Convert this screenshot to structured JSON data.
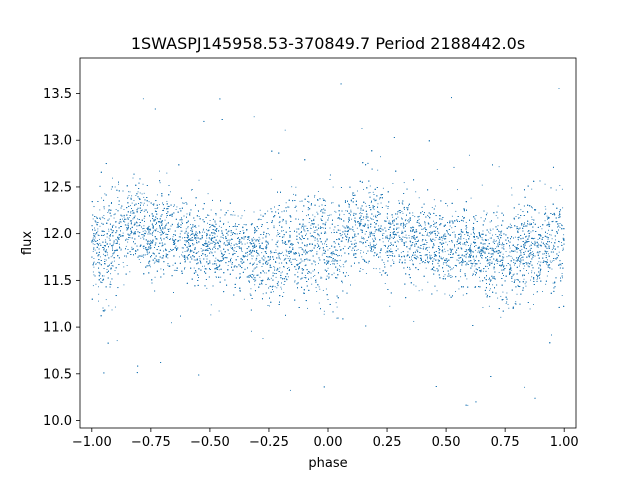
{
  "chart_data": {
    "type": "scatter",
    "title": "1SWASPJ145958.53-370849.7 Period 2188442.0s",
    "xlabel": "phase",
    "ylabel": "flux",
    "xlim": [
      -1.05,
      1.05
    ],
    "ylim": [
      9.92,
      13.88
    ],
    "xticks": [
      -1.0,
      -0.75,
      -0.5,
      -0.25,
      0.0,
      0.25,
      0.5,
      0.75,
      1.0
    ],
    "xtick_labels": [
      "−1.00",
      "−0.75",
      "−0.50",
      "−0.25",
      "0.00",
      "0.25",
      "0.50",
      "0.75",
      "1.00"
    ],
    "yticks": [
      10.0,
      10.5,
      11.0,
      11.5,
      12.0,
      12.5,
      13.0,
      13.5
    ],
    "ytick_labels": [
      "10.0",
      "10.5",
      "11.0",
      "11.5",
      "12.0",
      "12.5",
      "13.0",
      "13.5"
    ],
    "grid": false,
    "point_color": "#1f77b4",
    "series": [
      {
        "phase": [
          -1.0,
          -0.95,
          -0.9,
          -0.85,
          -0.8,
          -0.75,
          -0.7,
          -0.65,
          -0.6,
          -0.55,
          -0.5,
          -0.45,
          -0.4,
          -0.35,
          -0.3,
          -0.25,
          -0.2,
          -0.15,
          -0.1,
          -0.05,
          0.0,
          0.05,
          0.1,
          0.15,
          0.2,
          0.25,
          0.3,
          0.35,
          0.4,
          0.45,
          0.5,
          0.55,
          0.6,
          0.65,
          0.7,
          0.75,
          0.8,
          0.85,
          0.9,
          0.95,
          1.0
        ],
        "median_flux": [
          11.9,
          11.85,
          12.0,
          12.05,
          12.1,
          11.95,
          12.05,
          11.95,
          11.95,
          11.9,
          11.85,
          11.85,
          11.85,
          11.8,
          11.75,
          11.7,
          11.8,
          11.85,
          11.85,
          11.9,
          11.9,
          11.85,
          12.0,
          12.05,
          12.1,
          11.95,
          12.05,
          11.95,
          11.95,
          11.9,
          11.85,
          11.85,
          11.85,
          11.8,
          11.75,
          11.7,
          11.8,
          11.85,
          11.85,
          11.9,
          11.9
        ],
        "spread": [
          0.35,
          0.4,
          0.35,
          0.3,
          0.3,
          0.3,
          0.3,
          0.3,
          0.28,
          0.28,
          0.28,
          0.28,
          0.28,
          0.28,
          0.3,
          0.32,
          0.35,
          0.35,
          0.35,
          0.4,
          0.4,
          0.4,
          0.35,
          0.3,
          0.3,
          0.3,
          0.3,
          0.3,
          0.28,
          0.28,
          0.28,
          0.28,
          0.28,
          0.28,
          0.3,
          0.32,
          0.35,
          0.35,
          0.35,
          0.4,
          0.35
        ],
        "n_points": 14000
      }
    ]
  }
}
